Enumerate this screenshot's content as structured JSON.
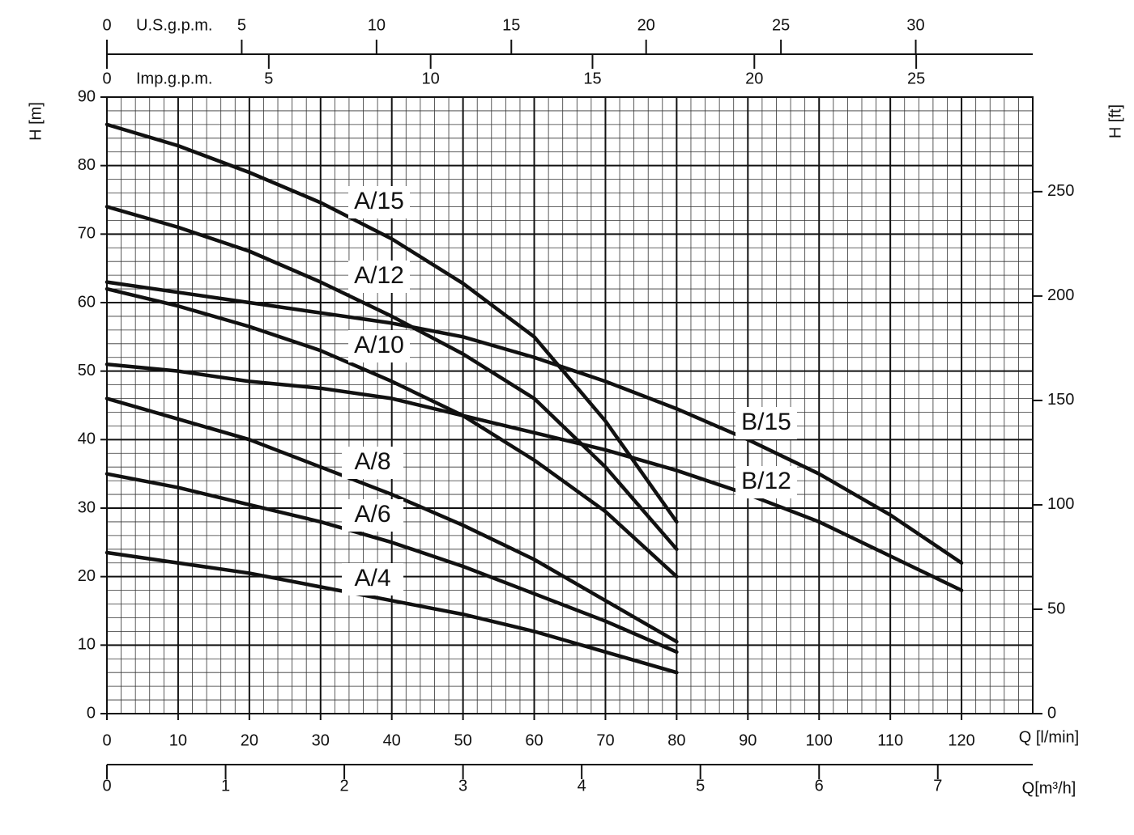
{
  "chart_data": {
    "type": "line",
    "x_label": "Q [l/min]",
    "y_label": "H [m]",
    "y2_label": "H [ft]",
    "x": [
      0,
      10,
      20,
      30,
      40,
      50,
      60,
      70,
      80,
      90,
      100,
      110,
      120
    ],
    "xlim": [
      0,
      130
    ],
    "xticks": [
      0,
      10,
      20,
      30,
      40,
      50,
      60,
      70,
      80,
      90,
      100,
      110,
      120
    ],
    "ylim": [
      0,
      90
    ],
    "yticks": [
      0,
      10,
      20,
      30,
      40,
      50,
      60,
      70,
      80,
      90
    ],
    "y2lim": [
      0,
      295.28
    ],
    "y2ticks": [
      0,
      50,
      100,
      150,
      200,
      250
    ],
    "grid": true,
    "us_gpm_axis": {
      "label": "U.S.g.p.m.",
      "lim": [
        0,
        34.34
      ],
      "ticks": [
        0,
        5,
        10,
        15,
        20,
        25,
        30
      ]
    },
    "imp_gpm_axis": {
      "label": "Imp.g.p.m.",
      "lim": [
        0,
        28.6
      ],
      "ticks": [
        0,
        5,
        10,
        15,
        20,
        25
      ]
    },
    "m3h_axis": {
      "label": "Q[m³/h]",
      "lim": [
        0,
        7.8
      ],
      "ticks": [
        0,
        1,
        2,
        3,
        4,
        5,
        6,
        7
      ]
    },
    "series": [
      {
        "name": "A/15",
        "color": "#111111",
        "values": [
          86,
          82.9,
          79,
          74.6,
          69.3,
          62.8,
          55,
          42.7,
          28,
          null,
          null,
          null,
          null
        ]
      },
      {
        "name": "A/12",
        "color": "#111111",
        "values": [
          74,
          71,
          67.5,
          63,
          58,
          52.5,
          46,
          36,
          24,
          null,
          null,
          null,
          null
        ]
      },
      {
        "name": "A/10",
        "color": "#111111",
        "values": [
          62,
          59.5,
          56.5,
          53,
          48.5,
          43.5,
          37,
          29.5,
          20,
          null,
          null,
          null,
          null
        ]
      },
      {
        "name": "A/8",
        "color": "#111111",
        "values": [
          46,
          43,
          40,
          36,
          32,
          27.5,
          22.5,
          16.5,
          10.5,
          null,
          null,
          null,
          null
        ]
      },
      {
        "name": "A/6",
        "color": "#111111",
        "values": [
          35,
          33,
          30.5,
          28,
          25,
          21.5,
          17.5,
          13.5,
          9,
          null,
          null,
          null,
          null
        ]
      },
      {
        "name": "A/4",
        "color": "#111111",
        "values": [
          23.5,
          22,
          20.5,
          18.5,
          16.5,
          14.5,
          12,
          9,
          6,
          null,
          null,
          null,
          null
        ]
      },
      {
        "name": "B/15",
        "color": "#111111",
        "values": [
          63,
          61.5,
          60,
          58.5,
          57,
          55,
          52,
          48.5,
          44.5,
          40,
          35,
          29,
          22
        ]
      },
      {
        "name": "B/12",
        "color": "#111111",
        "values": [
          51,
          50,
          48.5,
          47.5,
          46,
          43.5,
          41,
          38.5,
          35.5,
          32,
          28,
          23,
          18
        ]
      }
    ]
  }
}
